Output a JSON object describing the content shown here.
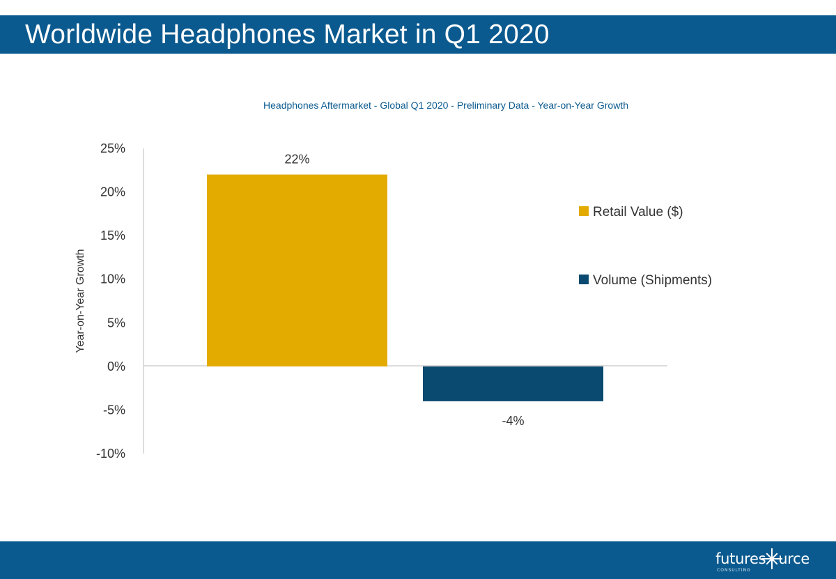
{
  "header": {
    "title": "Worldwide Headphones Market in Q1 2020"
  },
  "footer": {
    "logo_text_a": "futures",
    "logo_text_b": "urce",
    "logo_sub": "CONSULTING",
    "logo_icon": "star-icon"
  },
  "colors": {
    "band": "#0b5a8f",
    "retail": "#e3ab00",
    "volume": "#0b4a70",
    "title_text": "#0b5a8f"
  },
  "chart_data": {
    "type": "bar",
    "title": "Headphones Aftermarket - Global Q1 2020 - Preliminary Data - Year-on-Year Growth",
    "ylabel": "Year-on-Year Growth",
    "xlabel": "",
    "ylim": [
      -10,
      25
    ],
    "yticks": [
      "25%",
      "20%",
      "15%",
      "10%",
      "5%",
      "0%",
      "-5%",
      "-10%"
    ],
    "ytick_values": [
      25,
      20,
      15,
      10,
      5,
      0,
      -5,
      -10
    ],
    "series": [
      {
        "name": "Retail Value ($)",
        "values": [
          22
        ],
        "label": "22%",
        "color": "#e3ab00"
      },
      {
        "name": "Volume (Shipments)",
        "values": [
          -4
        ],
        "label": "-4%",
        "color": "#0b4a70"
      }
    ],
    "legend_position": "right",
    "grid": false
  }
}
